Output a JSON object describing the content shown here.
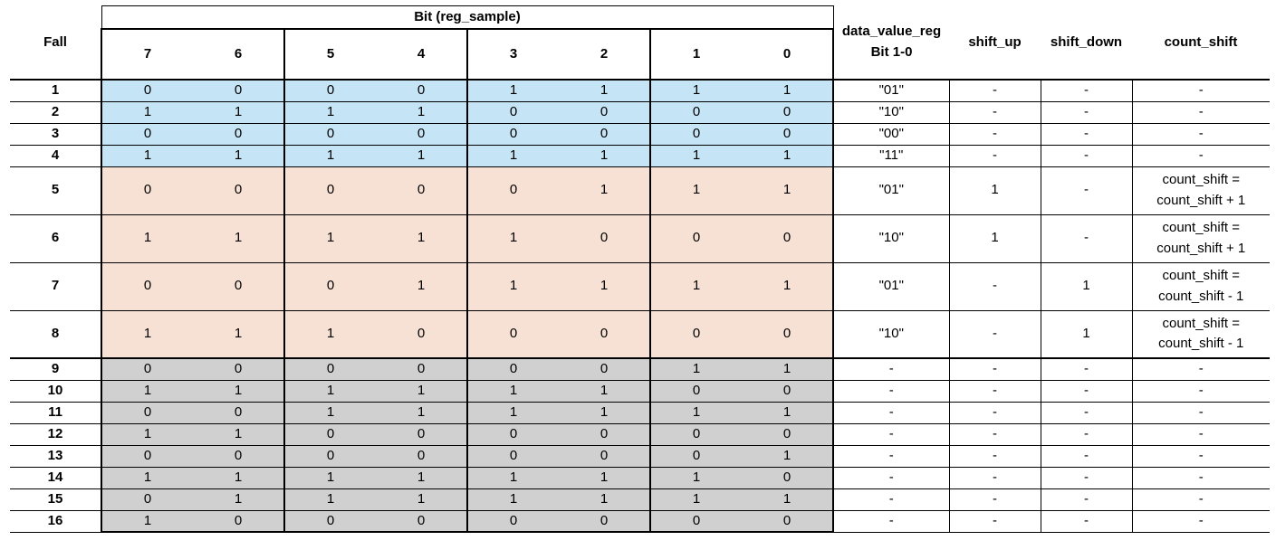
{
  "headers": {
    "fall": "Fall",
    "group_title": "Bit (reg_sample)",
    "bits": [
      "7",
      "6",
      "5",
      "4",
      "3",
      "2",
      "1",
      "0"
    ],
    "data_value_reg_line1": "data_value_reg",
    "data_value_reg_line2": "Bit 1-0",
    "shift_up": "shift_up",
    "shift_down": "shift_down",
    "count_shift": "count_shift"
  },
  "rows": [
    {
      "fall": "1",
      "bits": [
        "0",
        "0",
        "0",
        "0",
        "1",
        "1",
        "1",
        "1"
      ],
      "dv": "\"01\"",
      "up": "-",
      "down": "-",
      "cs1": "-",
      "cs2": ""
    },
    {
      "fall": "2",
      "bits": [
        "1",
        "1",
        "1",
        "1",
        "0",
        "0",
        "0",
        "0"
      ],
      "dv": "\"10\"",
      "up": "-",
      "down": "-",
      "cs1": "-",
      "cs2": ""
    },
    {
      "fall": "3",
      "bits": [
        "0",
        "0",
        "0",
        "0",
        "0",
        "0",
        "0",
        "0"
      ],
      "dv": "\"00\"",
      "up": "-",
      "down": "-",
      "cs1": "-",
      "cs2": ""
    },
    {
      "fall": "4",
      "bits": [
        "1",
        "1",
        "1",
        "1",
        "1",
        "1",
        "1",
        "1"
      ],
      "dv": "\"11\"",
      "up": "-",
      "down": "-",
      "cs1": "-",
      "cs2": ""
    },
    {
      "fall": "5",
      "bits": [
        "0",
        "0",
        "0",
        "0",
        "0",
        "1",
        "1",
        "1"
      ],
      "dv": "\"01\"",
      "up": "1",
      "down": "-",
      "cs1": "count_shift =",
      "cs2": "count_shift + 1"
    },
    {
      "fall": "6",
      "bits": [
        "1",
        "1",
        "1",
        "1",
        "1",
        "0",
        "0",
        "0"
      ],
      "dv": "\"10\"",
      "up": "1",
      "down": "-",
      "cs1": "count_shift =",
      "cs2": "count_shift + 1"
    },
    {
      "fall": "7",
      "bits": [
        "0",
        "0",
        "0",
        "1",
        "1",
        "1",
        "1",
        "1"
      ],
      "dv": "\"01\"",
      "up": "-",
      "down": "1",
      "cs1": "count_shift =",
      "cs2": "count_shift - 1"
    },
    {
      "fall": "8",
      "bits": [
        "1",
        "1",
        "1",
        "0",
        "0",
        "0",
        "0",
        "0"
      ],
      "dv": "\"10\"",
      "up": "-",
      "down": "1",
      "cs1": "count_shift =",
      "cs2": "count_shift - 1"
    },
    {
      "fall": "9",
      "bits": [
        "0",
        "0",
        "0",
        "0",
        "0",
        "0",
        "1",
        "1"
      ],
      "dv": "-",
      "up": "-",
      "down": "-",
      "cs1": "-",
      "cs2": ""
    },
    {
      "fall": "10",
      "bits": [
        "1",
        "1",
        "1",
        "1",
        "1",
        "1",
        "0",
        "0"
      ],
      "dv": "-",
      "up": "-",
      "down": "-",
      "cs1": "-",
      "cs2": ""
    },
    {
      "fall": "11",
      "bits": [
        "0",
        "0",
        "1",
        "1",
        "1",
        "1",
        "1",
        "1"
      ],
      "dv": "-",
      "up": "-",
      "down": "-",
      "cs1": "-",
      "cs2": ""
    },
    {
      "fall": "12",
      "bits": [
        "1",
        "1",
        "0",
        "0",
        "0",
        "0",
        "0",
        "0"
      ],
      "dv": "-",
      "up": "-",
      "down": "-",
      "cs1": "-",
      "cs2": ""
    },
    {
      "fall": "13",
      "bits": [
        "0",
        "0",
        "0",
        "0",
        "0",
        "0",
        "0",
        "1"
      ],
      "dv": "-",
      "up": "-",
      "down": "-",
      "cs1": "-",
      "cs2": ""
    },
    {
      "fall": "14",
      "bits": [
        "1",
        "1",
        "1",
        "1",
        "1",
        "1",
        "1",
        "0"
      ],
      "dv": "-",
      "up": "-",
      "down": "-",
      "cs1": "-",
      "cs2": ""
    },
    {
      "fall": "15",
      "bits": [
        "0",
        "1",
        "1",
        "1",
        "1",
        "1",
        "1",
        "1"
      ],
      "dv": "-",
      "up": "-",
      "down": "-",
      "cs1": "-",
      "cs2": ""
    },
    {
      "fall": "16",
      "bits": [
        "1",
        "0",
        "0",
        "0",
        "0",
        "0",
        "0",
        "0"
      ],
      "dv": "-",
      "up": "-",
      "down": "-",
      "cs1": "-",
      "cs2": ""
    }
  ],
  "colors": {
    "blue_fill": "#c5e4f5",
    "peach_fill": "#f7e1d5",
    "gray_fill": "#d0d0d0"
  }
}
